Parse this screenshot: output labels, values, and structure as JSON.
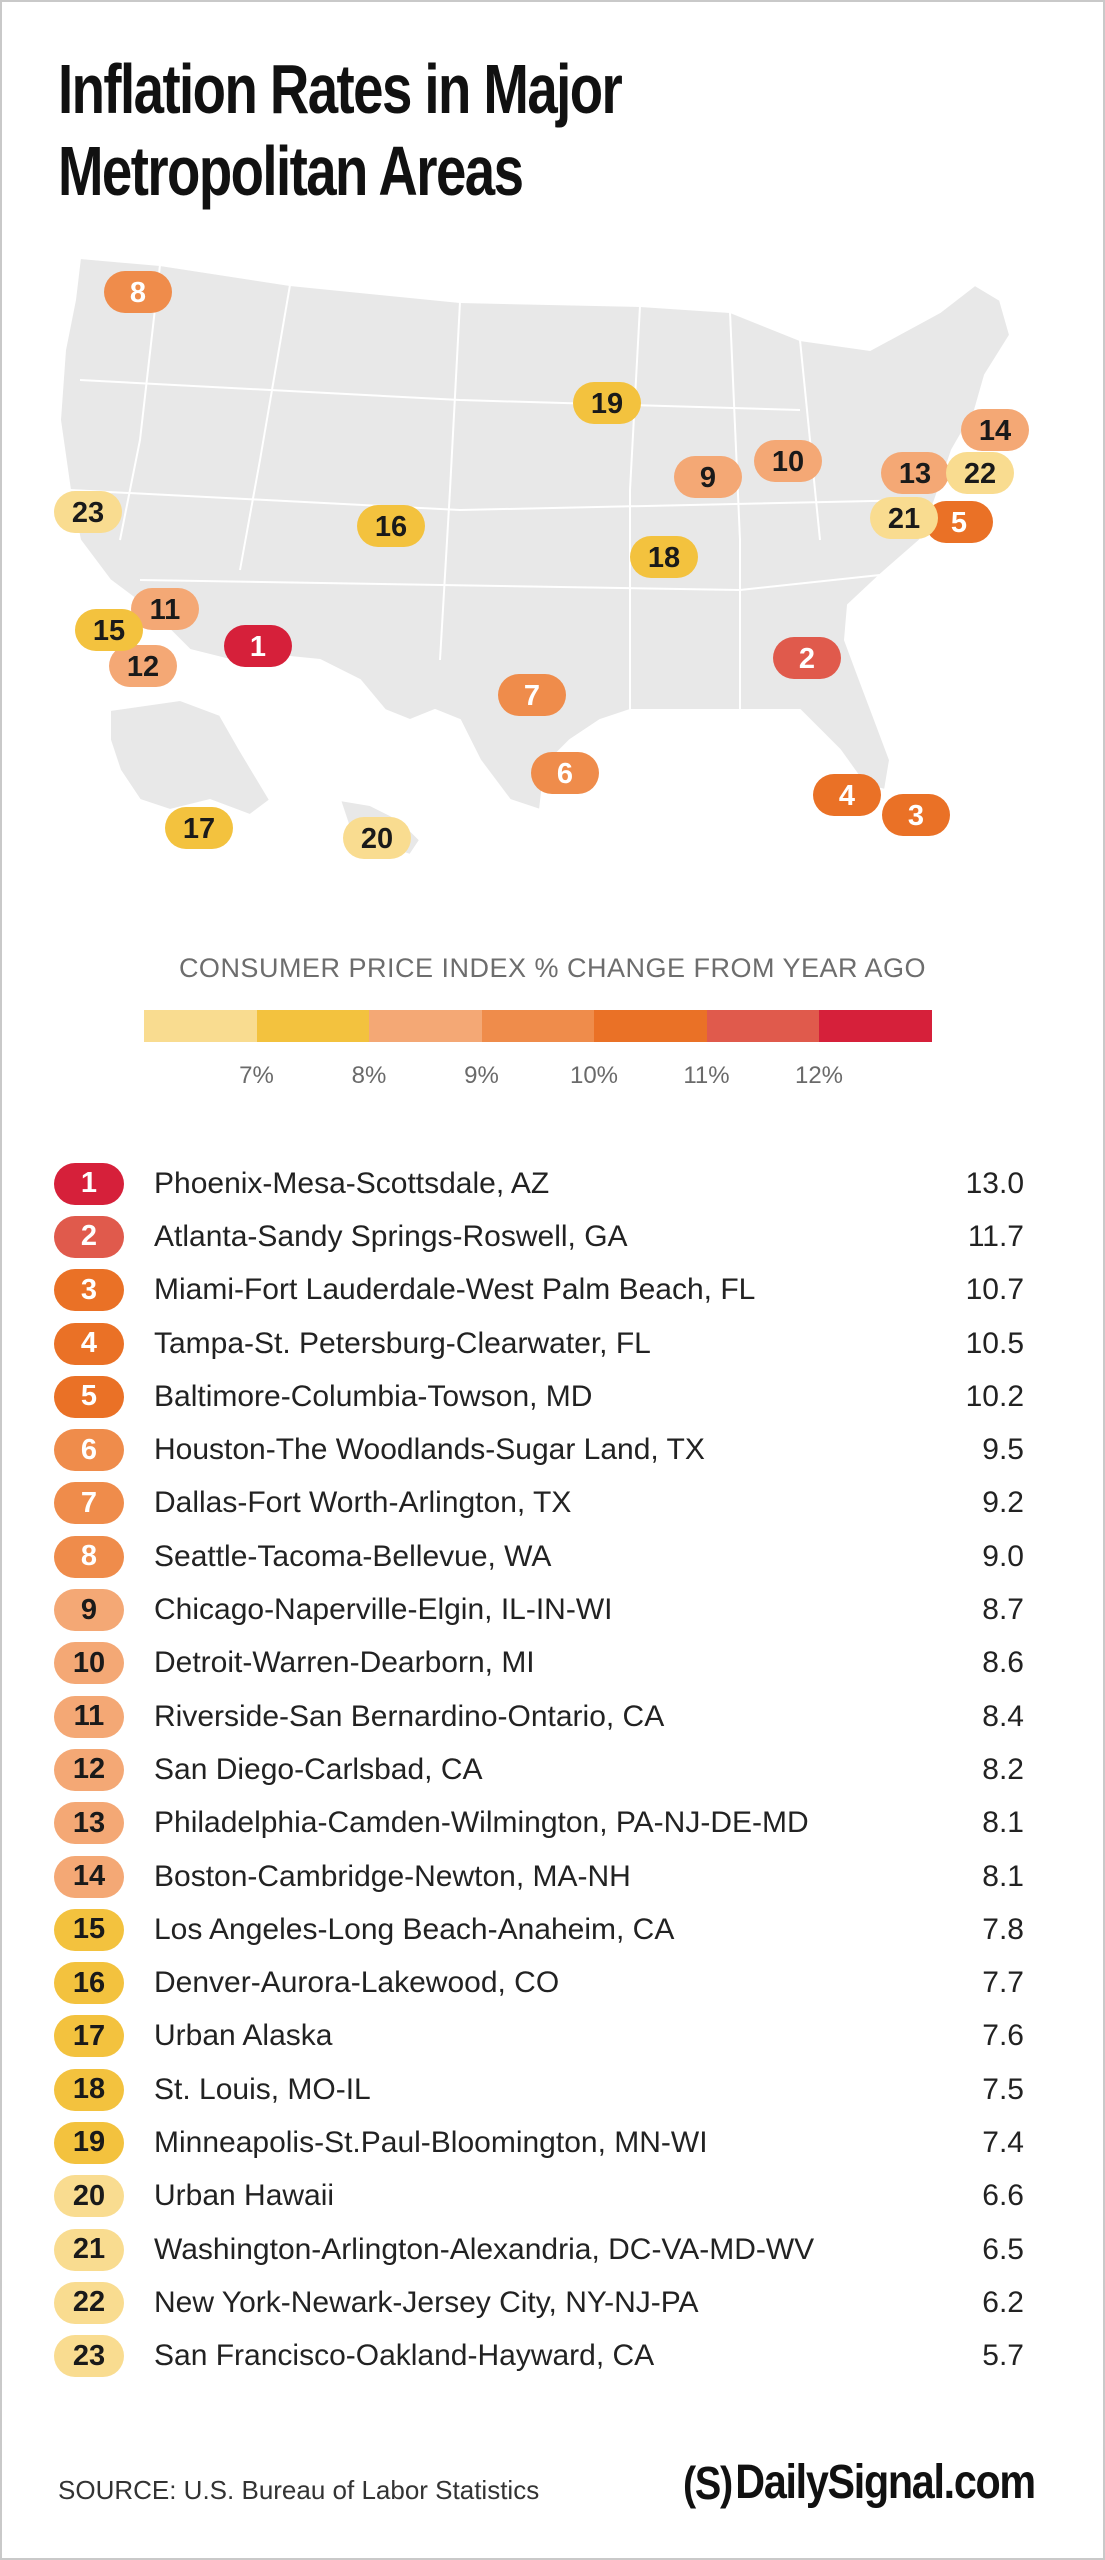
{
  "title": "Inflation Rates in Major Metropolitan Areas",
  "legend": {
    "title": "CONSUMER PRICE INDEX % CHANGE FROM YEAR AGO",
    "ticks": [
      "7%",
      "8%",
      "9%",
      "10%",
      "11%",
      "12%"
    ],
    "colors": [
      "#f9dc90",
      "#f3c23e",
      "#f4a875",
      "#ef8c4b",
      "#ea7126",
      "#e05a4c",
      "#d6203a"
    ]
  },
  "map": {
    "region": "United States",
    "pins": [
      {
        "rank": "1",
        "location": "Phoenix, AZ"
      },
      {
        "rank": "2",
        "location": "Atlanta, GA"
      },
      {
        "rank": "3",
        "location": "Miami, FL"
      },
      {
        "rank": "4",
        "location": "Tampa, FL"
      },
      {
        "rank": "5",
        "location": "Baltimore, MD"
      },
      {
        "rank": "6",
        "location": "Houston, TX"
      },
      {
        "rank": "7",
        "location": "Dallas, TX"
      },
      {
        "rank": "8",
        "location": "Seattle, WA"
      },
      {
        "rank": "9",
        "location": "Chicago, IL"
      },
      {
        "rank": "10",
        "location": "Detroit, MI"
      },
      {
        "rank": "11",
        "location": "Riverside, CA"
      },
      {
        "rank": "12",
        "location": "San Diego, CA"
      },
      {
        "rank": "13",
        "location": "Philadelphia, PA"
      },
      {
        "rank": "14",
        "location": "Boston, MA"
      },
      {
        "rank": "15",
        "location": "Los Angeles, CA"
      },
      {
        "rank": "16",
        "location": "Denver, CO"
      },
      {
        "rank": "17",
        "location": "Alaska"
      },
      {
        "rank": "18",
        "location": "St. Louis, MO"
      },
      {
        "rank": "19",
        "location": "Minneapolis, MN"
      },
      {
        "rank": "20",
        "location": "Hawaii"
      },
      {
        "rank": "21",
        "location": "Washington, DC"
      },
      {
        "rank": "22",
        "location": "New York, NY"
      },
      {
        "rank": "23",
        "location": "San Francisco, CA"
      }
    ]
  },
  "rows": [
    {
      "rank": "1",
      "name": "Phoenix-Mesa-Scottsdale, AZ",
      "value": "13.0",
      "bg": "#d6203a",
      "fg": "#ffffff"
    },
    {
      "rank": "2",
      "name": "Atlanta-Sandy Springs-Roswell, GA",
      "value": "11.7",
      "bg": "#e05a4c",
      "fg": "#ffffff"
    },
    {
      "rank": "3",
      "name": "Miami-Fort Lauderdale-West Palm Beach, FL",
      "value": "10.7",
      "bg": "#ea7126",
      "fg": "#ffffff"
    },
    {
      "rank": "4",
      "name": "Tampa-St. Petersburg-Clearwater, FL",
      "value": "10.5",
      "bg": "#ea7126",
      "fg": "#ffffff"
    },
    {
      "rank": "5",
      "name": "Baltimore-Columbia-Towson, MD",
      "value": "10.2",
      "bg": "#ea7126",
      "fg": "#ffffff"
    },
    {
      "rank": "6",
      "name": "Houston-The Woodlands-Sugar Land, TX",
      "value": "9.5",
      "bg": "#ef8c4b",
      "fg": "#ffffff"
    },
    {
      "rank": "7",
      "name": "Dallas-Fort Worth-Arlington, TX",
      "value": "9.2",
      "bg": "#ef8c4b",
      "fg": "#ffffff"
    },
    {
      "rank": "8",
      "name": "Seattle-Tacoma-Bellevue, WA",
      "value": "9.0",
      "bg": "#ef8c4b",
      "fg": "#ffffff"
    },
    {
      "rank": "9",
      "name": "Chicago-Naperville-Elgin, IL-IN-WI",
      "value": "8.7",
      "bg": "#f4a875",
      "fg": "#1a1a1a"
    },
    {
      "rank": "10",
      "name": "Detroit-Warren-Dearborn, MI",
      "value": "8.6",
      "bg": "#f4a875",
      "fg": "#1a1a1a"
    },
    {
      "rank": "11",
      "name": "Riverside-San Bernardino-Ontario, CA",
      "value": "8.4",
      "bg": "#f4a875",
      "fg": "#1a1a1a"
    },
    {
      "rank": "12",
      "name": "San Diego-Carlsbad, CA",
      "value": "8.2",
      "bg": "#f4a875",
      "fg": "#1a1a1a"
    },
    {
      "rank": "13",
      "name": "Philadelphia-Camden-Wilmington, PA-NJ-DE-MD",
      "value": "8.1",
      "bg": "#f4a875",
      "fg": "#1a1a1a"
    },
    {
      "rank": "14",
      "name": "Boston-Cambridge-Newton, MA-NH",
      "value": "8.1",
      "bg": "#f4a875",
      "fg": "#1a1a1a"
    },
    {
      "rank": "15",
      "name": "Los Angeles-Long Beach-Anaheim, CA",
      "value": "7.8",
      "bg": "#f3c23e",
      "fg": "#1a1a1a"
    },
    {
      "rank": "16",
      "name": "Denver-Aurora-Lakewood, CO",
      "value": "7.7",
      "bg": "#f3c23e",
      "fg": "#1a1a1a"
    },
    {
      "rank": "17",
      "name": "Urban Alaska",
      "value": "7.6",
      "bg": "#f3c23e",
      "fg": "#1a1a1a"
    },
    {
      "rank": "18",
      "name": "St. Louis, MO-IL",
      "value": "7.5",
      "bg": "#f3c23e",
      "fg": "#1a1a1a"
    },
    {
      "rank": "19",
      "name": "Minneapolis-St.Paul-Bloomington, MN-WI",
      "value": "7.4",
      "bg": "#f3c23e",
      "fg": "#1a1a1a"
    },
    {
      "rank": "20",
      "name": "Urban Hawaii",
      "value": "6.6",
      "bg": "#f9dc90",
      "fg": "#1a1a1a"
    },
    {
      "rank": "21",
      "name": "Washington-Arlington-Alexandria, DC-VA-MD-WV",
      "value": "6.5",
      "bg": "#f9dc90",
      "fg": "#1a1a1a"
    },
    {
      "rank": "22",
      "name": "New York-Newark-Jersey City, NY-NJ-PA",
      "value": "6.2",
      "bg": "#f9dc90",
      "fg": "#1a1a1a"
    },
    {
      "rank": "23",
      "name": "San Francisco-Oakland-Hayward, CA",
      "value": "5.7",
      "bg": "#f9dc90",
      "fg": "#1a1a1a"
    }
  ],
  "footer": {
    "source": "SOURCE: U.S. Bureau of Labor Statistics",
    "brand_mark": "(S)",
    "brand_name": "DailySignal.com"
  }
}
